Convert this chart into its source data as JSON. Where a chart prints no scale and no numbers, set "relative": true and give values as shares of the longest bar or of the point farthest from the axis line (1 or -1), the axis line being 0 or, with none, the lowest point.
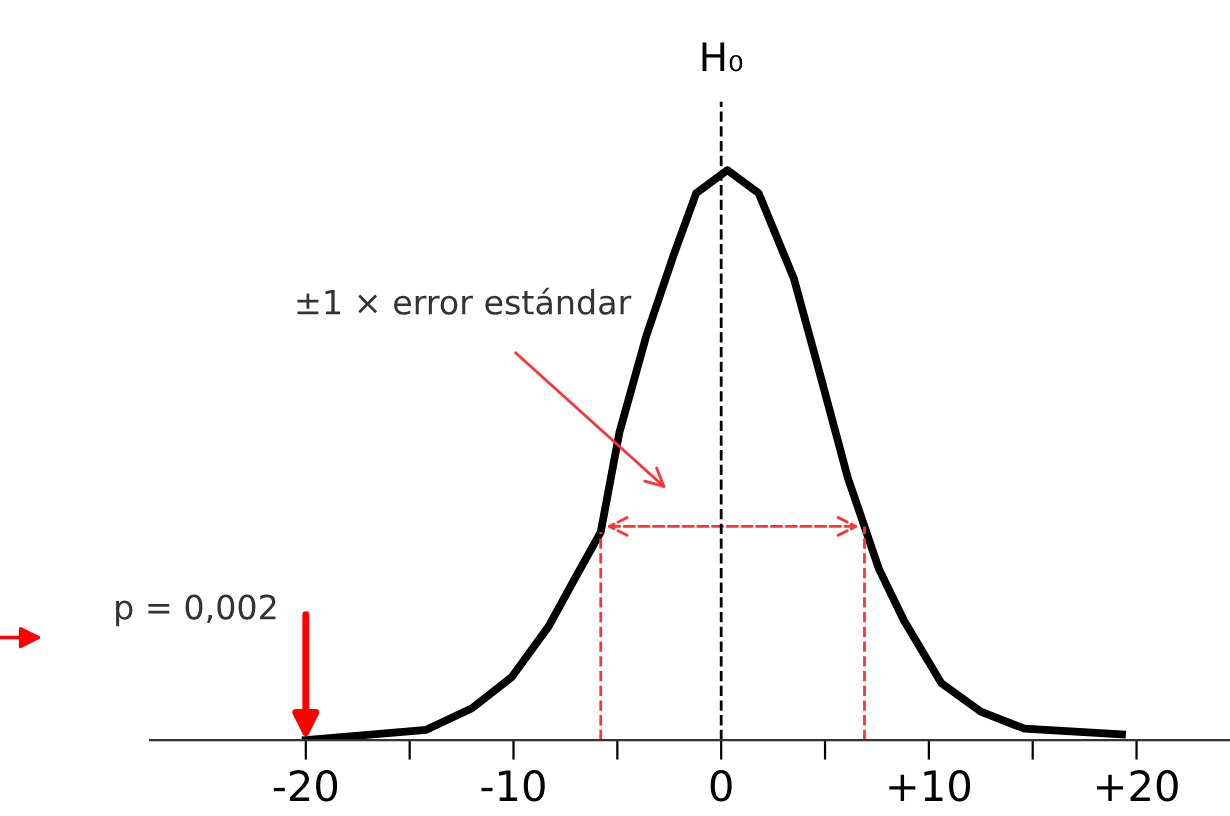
{
  "chart_data": {
    "type": "line",
    "relative": true,
    "x": [
      -20,
      -14.2,
      -12,
      -10.1,
      -8.3,
      -7.1,
      -5.8,
      -4.9,
      -3.6,
      -2.3,
      -1.2,
      0.3,
      1.8,
      3.5,
      4.7,
      6.1,
      6.9,
      7.6,
      8.8,
      10.6,
      12.5,
      14.6,
      19.3
    ],
    "series": [
      {
        "color": "#000000",
        "values": [
          0,
          0.018,
          0.056,
          0.11,
          0.2,
          0.28,
          0.365,
          0.54,
          0.71,
          0.85,
          0.96,
          1,
          0.96,
          0.81,
          0.65,
          0.46,
          0.375,
          0.3,
          0.21,
          0.1,
          0.05,
          0.02,
          0.01
        ]
      }
    ],
    "xlim": [
      -27.5,
      24.5
    ],
    "xticks": [
      -20,
      {
        "value": -15,
        "label": null
      },
      -10,
      {
        "value": -5,
        "label": null
      },
      0,
      {
        "value": 5,
        "label": null
      },
      {
        "value": 10,
        "label": "+10"
      },
      {
        "value": 15,
        "label": null
      },
      {
        "value": 20,
        "label": "+20"
      }
    ],
    "tick_labels": "x",
    "grid": false,
    "legend": false,
    "marker": "none",
    "line_style": "solid",
    "ref_lines": [
      {
        "axis": "x",
        "value": 0,
        "label": "H₀",
        "color": "#000000",
        "line_style": "dashed"
      },
      {
        "axis": "x",
        "value": -5.8,
        "color": "#ff3333",
        "line_style": "dashed"
      },
      {
        "axis": "x",
        "value": 6.9,
        "color": "#ff3333",
        "line_style": "dashed"
      }
    ],
    "annotations": [
      "±1 × error estándar",
      {
        "text": "p = 0,002",
        "x": -20,
        "y": 0
      }
    ]
  }
}
